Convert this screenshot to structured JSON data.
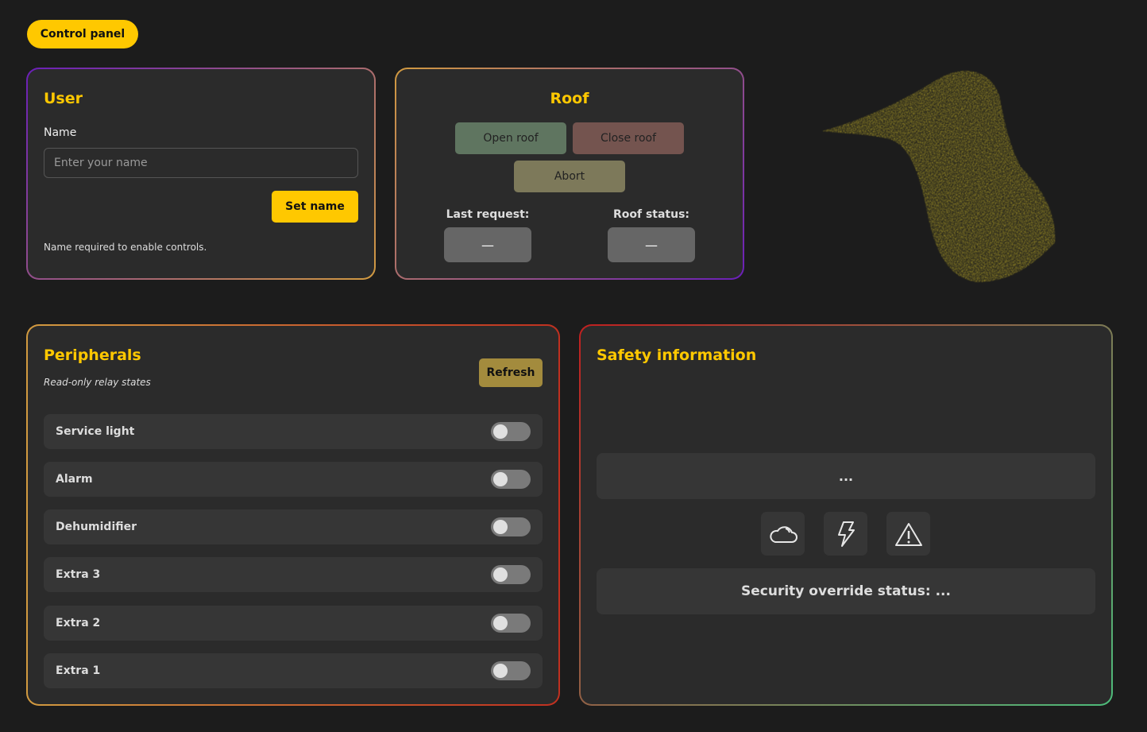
{
  "header": {
    "title": "Control panel"
  },
  "user": {
    "title": "User",
    "name_label": "Name",
    "name_placeholder": "Enter your name",
    "name_value": "",
    "set_name": "Set name",
    "note": "Name required to enable controls."
  },
  "roof": {
    "title": "Roof",
    "open": "Open roof",
    "close": "Close roof",
    "abort": "Abort",
    "last_request_label": "Last request:",
    "last_request_value": "—",
    "status_label": "Roof status:",
    "status_value": "—"
  },
  "peripherals": {
    "title": "Peripherals",
    "subtitle": "Read-only relay states",
    "refresh": "Refresh",
    "items": [
      {
        "label": "Service light",
        "on": false
      },
      {
        "label": "Alarm",
        "on": false
      },
      {
        "label": "Dehumidifier",
        "on": false
      },
      {
        "label": "Extra 3",
        "on": false
      },
      {
        "label": "Extra 2",
        "on": false
      },
      {
        "label": "Extra 1",
        "on": false
      }
    ]
  },
  "safety": {
    "title": "Safety information",
    "info": "...",
    "icons": [
      "cloud-icon",
      "lightning-icon",
      "warning-icon"
    ],
    "override": "Security override status: ..."
  },
  "colors": {
    "accent": "#ffc800",
    "open": "#5f7560",
    "close": "#74544f",
    "abort": "#7d795a",
    "refresh": "#a38b3d"
  }
}
